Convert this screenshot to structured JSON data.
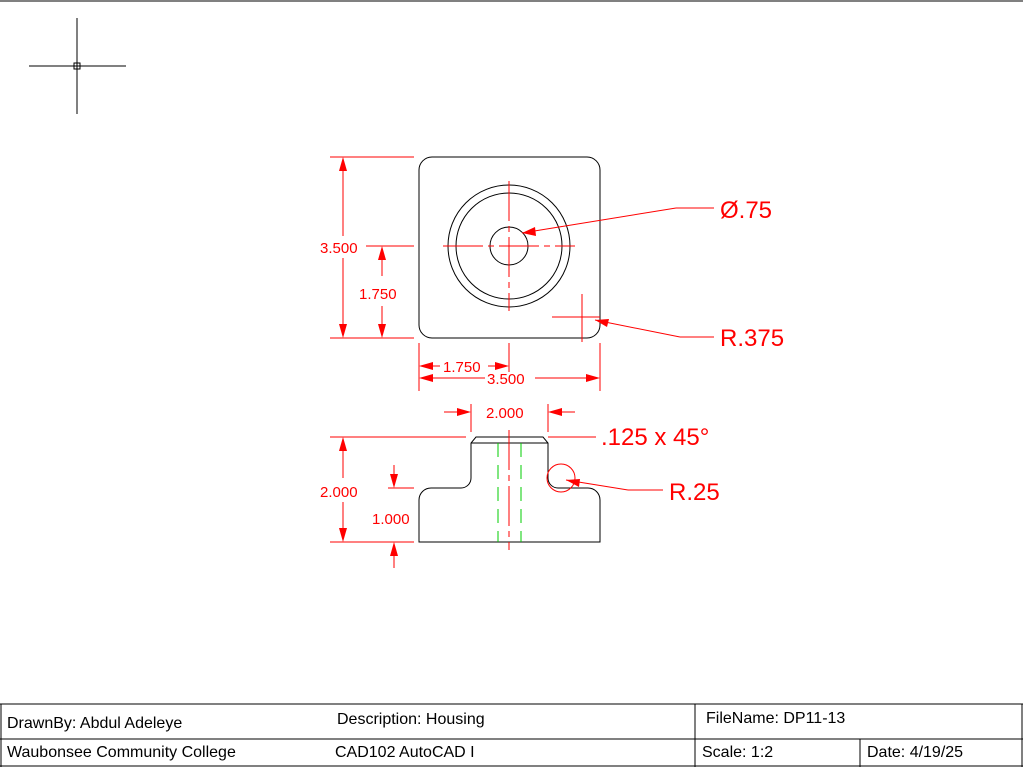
{
  "dimensions": {
    "top_height": "3.500",
    "top_center_y": "1.750",
    "top_center_x": "1.750",
    "top_width": "3.500",
    "boss_width": "2.000",
    "front_height": "2.000",
    "base_height": "1.000"
  },
  "callouts": {
    "hole_diameter": "Ø.75",
    "corner_radius": "R.375",
    "chamfer": ".125 x 45°",
    "fillet_radius": "R.25"
  },
  "title_block": {
    "drawn_by": "DrawnBy: Abdul Adeleye",
    "description": "Description: Housing",
    "file_name": "FileName: DP11-13",
    "school": "Waubonsee Community College",
    "course": "CAD102 AutoCAD I",
    "scale": "Scale: 1:2",
    "date": "Date: 4/19/25"
  },
  "colors": {
    "object_lines": "#000000",
    "dimensions": "#ff0000",
    "hidden_lines": "#00cc00"
  }
}
